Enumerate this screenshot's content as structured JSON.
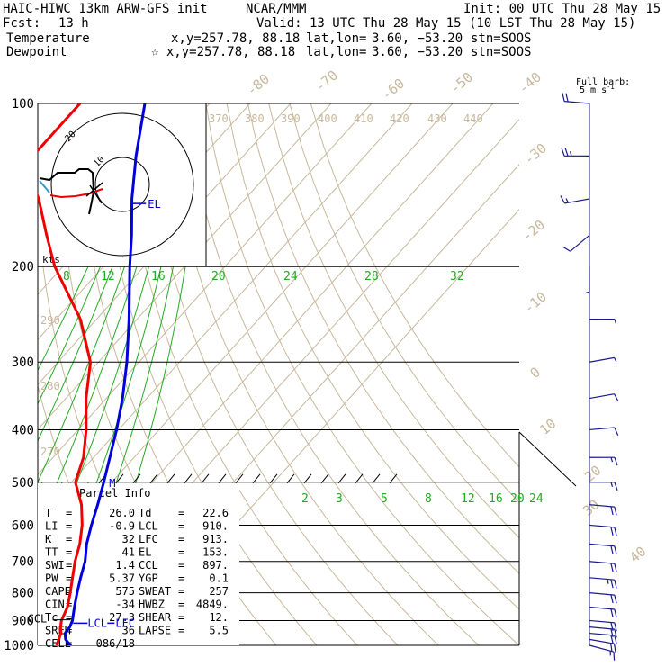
{
  "header": {
    "model": "HAIC-HIWC 13km ARW-GFS init",
    "org": "NCAR/MMM",
    "init": "Init: 00 UTC Thu 28 May 15",
    "fcst_label": "Fcst:",
    "fcst_value": "13 h",
    "valid": "Valid: 13 UTC Thu 28 May 15 (10 LST Thu 28 May 15)",
    "temperature_label": "Temperature",
    "dewpoint_label": "Dewpoint",
    "temp_probe": "x,y=257.78, 88.18",
    "dew_probe": "☆ x,y=257.78, 88.18",
    "latlon_label": "lat,lon=",
    "latlon_value": "3.60, −53.20",
    "stn": "stn=SOOS"
  },
  "colors": {
    "temperature": "#0000dd",
    "dewpoint": "#ee0000",
    "isotherm": "#c8b89c",
    "mixing_ratio": "#22aa22",
    "isobar": "#000000",
    "wind_barb": "#1a1a8c"
  },
  "barb_legend": {
    "title": "Full barb:",
    "value": "5 m s",
    "exp": "-1"
  },
  "hodograph": {
    "label": "kts",
    "ring_labels": [
      "10",
      "20"
    ]
  },
  "parcel_info": {
    "title": "Parcel Info",
    "rows": [
      {
        "l": "T",
        "lv": "26.0",
        "r": "Td",
        "rv": "22.6"
      },
      {
        "l": "LI",
        "lv": "-0.9",
        "r": "LCL",
        "rv": "910."
      },
      {
        "l": "K",
        "lv": "32",
        "r": "LFC",
        "rv": "913."
      },
      {
        "l": "TT",
        "lv": "41",
        "r": "EL",
        "rv": "153."
      },
      {
        "l": "SWI",
        "lv": "1.4",
        "r": "CCL",
        "rv": "897."
      },
      {
        "l": "PW",
        "lv": "5.37",
        "r": "YGP",
        "rv": "0.1"
      },
      {
        "l": "CAPE",
        "lv": "575",
        "r": "SWEAT",
        "rv": "257"
      },
      {
        "l": "CIN",
        "lv": "-34",
        "r": "HWBZ",
        "rv": "4849."
      },
      {
        "l": "Tc",
        "lv": "27.3",
        "r": "SHEAR",
        "rv": "12."
      },
      {
        "l": "SREH",
        "lv": "36",
        "r": "LAPSE",
        "rv": "5.5"
      },
      {
        "l": "CELL",
        "lv": "086/18",
        "r": "",
        "rv": ""
      }
    ]
  },
  "level_labels": {
    "el": "EL",
    "ccl": "CCL",
    "lcl": "LCL",
    "lfc": "LFC",
    "m": "M"
  },
  "chart_data": {
    "type": "line",
    "title": "",
    "y_axis": "pressure (hPa)",
    "pressure_ticks": [
      100,
      200,
      300,
      400,
      500,
      600,
      700,
      800,
      900,
      1000
    ],
    "pressure_tick_labels": [
      "100",
      "200",
      "300",
      "400",
      "500",
      "600",
      "700",
      "800",
      "900",
      "1000"
    ],
    "isotherm_labels": [
      "-80",
      "-70",
      "-60",
      "-50",
      "-40",
      "-30",
      "-20",
      "-10",
      "0",
      "10",
      "20",
      "30",
      "40"
    ],
    "theta_labels_top": [
      "370",
      "380",
      "390",
      "400",
      "410",
      "420",
      "430",
      "440"
    ],
    "theta_labels_left": [
      "290",
      "280",
      "270"
    ],
    "theta_e_labels": [
      "8",
      "12",
      "16",
      "20",
      "24",
      "28",
      "32"
    ],
    "mixing_ratio_labels": [
      "2",
      "3",
      "5",
      "8",
      "12",
      "16",
      "20",
      "24"
    ],
    "series": [
      {
        "name": "Temperature",
        "points": [
          [
            1000,
            26.0
          ],
          [
            975,
            23.5
          ],
          [
            950,
            22.0
          ],
          [
            925,
            21.8
          ],
          [
            900,
            21.0
          ],
          [
            850,
            18.5
          ],
          [
            800,
            16.0
          ],
          [
            750,
            13.5
          ],
          [
            700,
            11.0
          ],
          [
            650,
            7.5
          ],
          [
            600,
            4.5
          ],
          [
            550,
            1.5
          ],
          [
            500,
            -2.0
          ],
          [
            450,
            -6.0
          ],
          [
            400,
            -10.5
          ],
          [
            350,
            -16.0
          ],
          [
            300,
            -23.0
          ],
          [
            250,
            -32.0
          ],
          [
            200,
            -43.5
          ],
          [
            175,
            -50.0
          ],
          [
            150,
            -58.0
          ],
          [
            125,
            -66.5
          ],
          [
            100,
            -76.0
          ]
        ]
      },
      {
        "name": "Dewpoint",
        "points": [
          [
            1000,
            22.6
          ],
          [
            975,
            21.8
          ],
          [
            950,
            21.0
          ],
          [
            925,
            19.5
          ],
          [
            900,
            18.3
          ],
          [
            850,
            16.8
          ],
          [
            800,
            14.3
          ],
          [
            750,
            11.5
          ],
          [
            700,
            8.5
          ],
          [
            650,
            5.8
          ],
          [
            600,
            2.2
          ],
          [
            550,
            -2.5
          ],
          [
            500,
            -9.0
          ],
          [
            450,
            -12.5
          ],
          [
            400,
            -18.0
          ],
          [
            350,
            -25.0
          ],
          [
            300,
            -32.0
          ],
          [
            250,
            -44.0
          ],
          [
            200,
            -62.0
          ],
          [
            175,
            -71.0
          ],
          [
            150,
            -81.0
          ],
          [
            130,
            -92.0
          ],
          [
            100,
            -92.0
          ]
        ]
      }
    ],
    "levels": {
      "EL": 153,
      "LCL": 910,
      "LFC": 913,
      "CCL": 897
    },
    "winds": {
      "note": "speed in m/s, direction in degrees",
      "points": [
        [
          1000,
          105,
          9
        ],
        [
          975,
          100,
          11
        ],
        [
          950,
          95,
          12
        ],
        [
          925,
          95,
          12
        ],
        [
          900,
          95,
          11
        ],
        [
          850,
          95,
          11
        ],
        [
          800,
          95,
          12
        ],
        [
          750,
          95,
          13
        ],
        [
          700,
          95,
          12
        ],
        [
          650,
          95,
          12
        ],
        [
          600,
          95,
          11
        ],
        [
          550,
          95,
          10
        ],
        [
          500,
          90,
          9
        ],
        [
          450,
          90,
          8
        ],
        [
          400,
          85,
          6
        ],
        [
          350,
          80,
          5
        ],
        [
          300,
          80,
          4
        ],
        [
          250,
          90,
          4
        ],
        [
          200,
          180,
          3
        ],
        [
          175,
          230,
          5
        ],
        [
          150,
          260,
          9
        ],
        [
          125,
          270,
          13
        ],
        [
          100,
          275,
          10
        ]
      ]
    }
  }
}
